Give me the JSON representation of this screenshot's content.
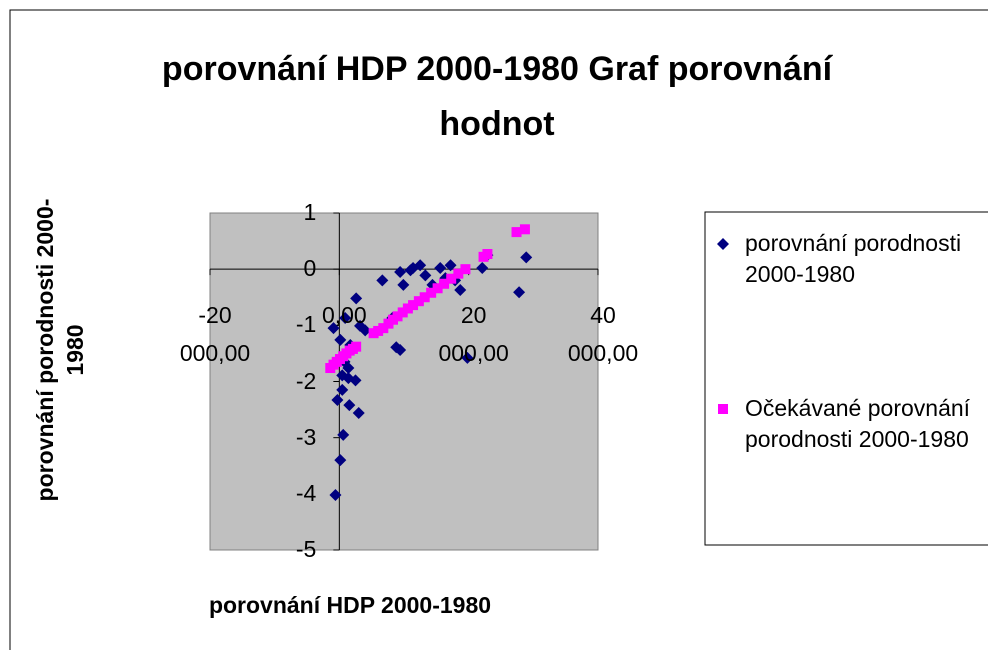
{
  "chart_data": {
    "type": "scatter",
    "title": "porovnání HDP 2000-1980 Graf porovnání hodnot",
    "x_label": "porovnání HDP 2000-1980",
    "y_label": "porovnání porodnosti 2000-1980",
    "xlim": [
      -20000,
      40000
    ],
    "xticks": [
      {
        "value": -20000,
        "label": "-20 000,00"
      },
      {
        "value": 0,
        "label": "0,00"
      },
      {
        "value": 20000,
        "label": "20 000,00"
      },
      {
        "value": 40000,
        "label": "40 000,00"
      }
    ],
    "ylim": [
      -5,
      1
    ],
    "yticks": [
      -5,
      -4,
      -3,
      -2,
      -1,
      0,
      1
    ],
    "grid": false,
    "plot_background": "#c0c0c0",
    "legend": "right",
    "series": [
      {
        "name": "porovnání porodnosti 2000-1980",
        "color": "#000080",
        "marker": "diamond",
        "x": [
          -600,
          150,
          600,
          -300,
          450,
          1550,
          3000,
          2500,
          1400,
          -900,
          150,
          900,
          1700,
          2600,
          800,
          1400,
          450,
          6650,
          8800,
          9400,
          9400,
          9900,
          11000,
          11400,
          12500,
          13300,
          14400,
          15600,
          16400,
          17200,
          17900,
          18700,
          19800,
          22100,
          22900,
          27800,
          28900,
          8200,
          4000,
          3200
        ],
        "values": [
          -4.02,
          -3.4,
          -2.95,
          -2.33,
          -2.15,
          -2.42,
          -2.56,
          -1.98,
          -1.94,
          -1.05,
          -1.26,
          -0.87,
          -1.35,
          -0.52,
          -1.65,
          -1.76,
          -1.89,
          -0.2,
          -1.39,
          -1.44,
          -0.05,
          -0.28,
          -0.02,
          0.02,
          0.07,
          -0.11,
          -0.28,
          0.02,
          -0.16,
          0.07,
          -0.2,
          -0.37,
          -1.58,
          0.02,
          0.25,
          -0.41,
          0.21,
          -0.87,
          -1.09,
          -1.01
        ]
      },
      {
        "name": "Očekávané porovnání porodnosti 2000-1980",
        "color": "#ff00ff",
        "marker": "square",
        "x": [
          -1400,
          -900,
          -400,
          100,
          600,
          1100,
          1600,
          2100,
          2600,
          5300,
          6000,
          6800,
          7600,
          8300,
          9000,
          9800,
          10600,
          11400,
          12300,
          13200,
          14200,
          15200,
          16200,
          17300,
          18400,
          19500,
          22300,
          22900,
          27400,
          28700
        ],
        "values": [
          -1.76,
          -1.7,
          -1.65,
          -1.6,
          -1.55,
          -1.5,
          -1.45,
          -1.42,
          -1.38,
          -1.14,
          -1.1,
          -1.05,
          -0.97,
          -0.9,
          -0.84,
          -0.77,
          -0.7,
          -0.64,
          -0.57,
          -0.5,
          -0.42,
          -0.34,
          -0.26,
          -0.17,
          -0.08,
          0.0,
          0.22,
          0.27,
          0.66,
          0.71
        ]
      }
    ]
  }
}
